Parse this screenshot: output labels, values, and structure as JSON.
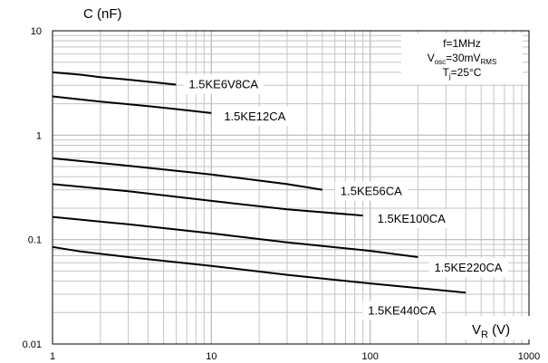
{
  "chart_data": {
    "type": "line",
    "x_scale": "log",
    "y_scale": "log",
    "xlim": [
      1,
      1000
    ],
    "ylim": [
      0.01,
      10
    ],
    "grid": true,
    "xlabel": {
      "main": "V",
      "sub": "R",
      "unit": " (V)"
    },
    "ylabel": "C (nF)",
    "x_ticks": [
      "1",
      "10",
      "100",
      "1000"
    ],
    "y_ticks": [
      "10",
      "1",
      "0.1",
      "0.01"
    ],
    "conditions": [
      {
        "main": "f=1MHz"
      },
      {
        "main": "V",
        "sub1": "osc",
        "mid": "=30mV",
        "sub2": "RMS"
      },
      {
        "main": "T",
        "sub1": "j",
        "mid": "=25°C"
      }
    ],
    "series": [
      {
        "name": "1.5KE6V8CA",
        "x": [
          1,
          1.5,
          2,
          3,
          4,
          6
        ],
        "y": [
          4.0,
          3.8,
          3.6,
          3.4,
          3.25,
          3.05
        ]
      },
      {
        "name": "1.5KE12CA",
        "x": [
          1,
          2,
          4,
          6,
          10
        ],
        "y": [
          2.35,
          2.1,
          1.9,
          1.78,
          1.63
        ]
      },
      {
        "name": "1.5KE56CA",
        "x": [
          1,
          3,
          10,
          30,
          50
        ],
        "y": [
          0.6,
          0.51,
          0.42,
          0.34,
          0.3
        ]
      },
      {
        "name": "1.5KE100CA",
        "x": [
          1,
          3,
          10,
          30,
          90
        ],
        "y": [
          0.34,
          0.29,
          0.235,
          0.195,
          0.17
        ]
      },
      {
        "name": "1.5KE220CA",
        "x": [
          1,
          3,
          10,
          30,
          100,
          200
        ],
        "y": [
          0.165,
          0.14,
          0.115,
          0.094,
          0.078,
          0.068
        ]
      },
      {
        "name": "1.5KE440CA",
        "x": [
          1,
          1.5,
          3,
          10,
          30,
          100,
          400
        ],
        "y": [
          0.085,
          0.077,
          0.068,
          0.056,
          0.046,
          0.038,
          0.031
        ]
      }
    ]
  }
}
